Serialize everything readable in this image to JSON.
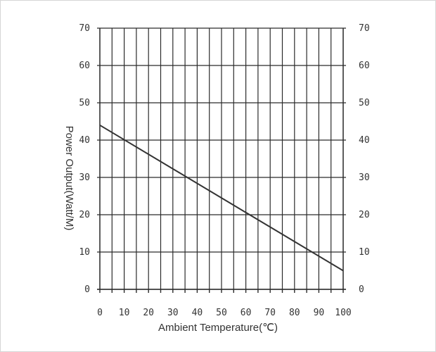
{
  "chart_data": {
    "type": "line",
    "title": "",
    "xlabel": "Ambient Temperature(℃)",
    "ylabel": "Power Output(Watt/M)",
    "xlim": [
      0,
      100
    ],
    "ylim": [
      0,
      70
    ],
    "x_ticks": [
      "0",
      "10",
      "20",
      "30",
      "40",
      "50",
      "60",
      "70",
      "80",
      "90",
      "100"
    ],
    "y_ticks_left": [
      "0",
      "10",
      "20",
      "30",
      "40",
      "50",
      "60",
      "70"
    ],
    "y_ticks_right": [
      "0",
      "10",
      "20",
      "30",
      "40",
      "50",
      "60",
      "70"
    ],
    "grid": true,
    "legend": "none",
    "series": [
      {
        "x": [
          0,
          100
        ],
        "y": [
          44,
          5
        ],
        "color": "#333333"
      }
    ]
  }
}
